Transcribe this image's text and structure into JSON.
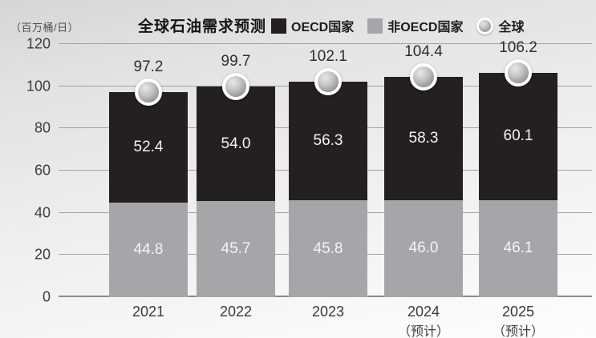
{
  "header": {
    "unit_label": "（百万桶/日）",
    "title": "全球石油需求预测"
  },
  "legend": {
    "position": "top",
    "items": [
      {
        "label": "OECD国家",
        "swatch": "square",
        "color": "#241f21"
      },
      {
        "label": "非OECD国家",
        "swatch": "square",
        "color": "#a6a6a8"
      },
      {
        "label": "全球",
        "swatch": "sphere",
        "color": "#a9a9ac"
      }
    ]
  },
  "chart_data": {
    "type": "bar",
    "stacked": true,
    "title": "全球石油需求预测",
    "unit_label": "（百万桶/日）",
    "categories": [
      "2021",
      "2022",
      "2023",
      "2024",
      "2025"
    ],
    "category_notes": [
      "",
      "",
      "",
      "（预计）",
      "（预计）"
    ],
    "series": [
      {
        "name": "非OECD国家",
        "stack": "bottom",
        "color": "#a6a6a8",
        "values": [
          44.8,
          45.7,
          45.8,
          46.0,
          46.1
        ]
      },
      {
        "name": "OECD国家",
        "stack": "top",
        "color": "#241f21",
        "values": [
          52.4,
          54.0,
          56.3,
          58.3,
          60.1
        ]
      }
    ],
    "total_markers": {
      "name": "全球",
      "marker": "gray-sphere",
      "values": [
        97.2,
        99.7,
        102.1,
        104.4,
        106.2
      ]
    },
    "ylim": [
      0,
      120
    ],
    "yticks": [
      0,
      20,
      40,
      60,
      80,
      100,
      120
    ],
    "grid": true,
    "value_labels": "one-decimal"
  }
}
